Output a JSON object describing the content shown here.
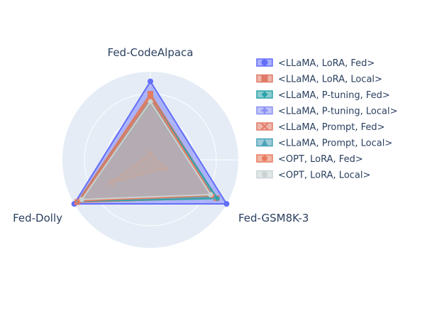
{
  "chart_data": {
    "type": "radar",
    "axes": [
      "Fed-CodeAlpaca",
      "Fed-GSM8K-3",
      "Fed-Dolly"
    ],
    "range": [
      0,
      1
    ],
    "grid": true,
    "legend_position": "right",
    "series": [
      {
        "name": "<LLaMA, LoRA, Fed>",
        "values": [
          0.89,
          1.0,
          1.0
        ],
        "color": "#636efa",
        "marker": "circle"
      },
      {
        "name": "<LLaMA, LoRA, Local>",
        "values": [
          0.75,
          0.87,
          0.96
        ],
        "color": "#e07b67",
        "marker": "square"
      },
      {
        "name": "<LLaMA, P-tuning, Fed>",
        "values": [
          0.72,
          0.88,
          0.94
        ],
        "color": "#2ca3a8",
        "marker": "diamond"
      },
      {
        "name": "<LLaMA, P-tuning, Local>",
        "values": [
          0.58,
          0.78,
          0.93
        ],
        "color": "#8b91f4",
        "marker": "cross"
      },
      {
        "name": "<LLaMA, Prompt, Fed>",
        "values": [
          0.07,
          0.19,
          0.52
        ],
        "color": "#e07b67",
        "marker": "x"
      },
      {
        "name": "<LLaMA, Prompt, Local>",
        "values": [
          0.63,
          0.83,
          0.9
        ],
        "color": "#4ba3b8",
        "marker": "triangle-up"
      },
      {
        "name": "<OPT, LoRA, Fed>",
        "values": [
          0.72,
          0.81,
          0.93
        ],
        "color": "#e87b5e",
        "marker": "pentagon"
      },
      {
        "name": "<OPT, LoRA, Local>",
        "values": [
          0.66,
          0.79,
          0.9
        ],
        "color": "#c9d3d4",
        "marker": "hexagon"
      }
    ]
  }
}
